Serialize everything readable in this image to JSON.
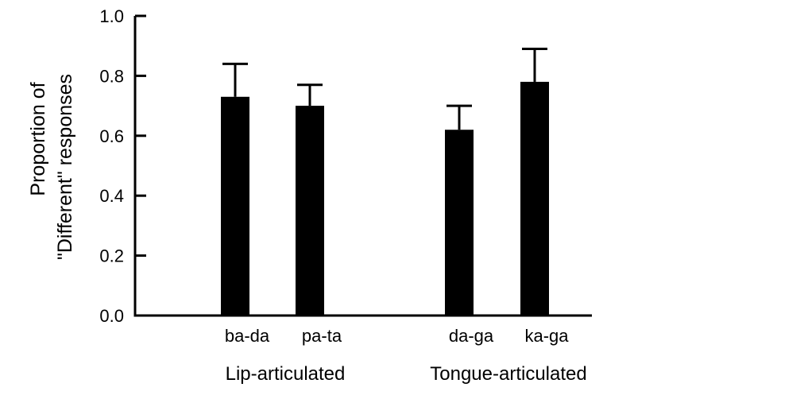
{
  "chart_data": {
    "type": "bar",
    "title": "",
    "ylabel_lines": [
      "Proportion of",
      "\"Different\" responses"
    ],
    "xlabel": "",
    "ylim": [
      0,
      1.0
    ],
    "yticks": [
      "0.0",
      "0.2",
      "0.4",
      "0.6",
      "0.8",
      "1.0"
    ],
    "grid": false,
    "categories": [
      "ba-da",
      "pa-ta",
      "da-ga",
      "ka-ga"
    ],
    "values": [
      0.73,
      0.7,
      0.62,
      0.78
    ],
    "errors": [
      0.11,
      0.07,
      0.08,
      0.11
    ],
    "groups": [
      {
        "label": "Lip-articulated",
        "members": [
          "ba-da",
          "pa-ta"
        ]
      },
      {
        "label": "Tongue-articulated",
        "members": [
          "da-ga",
          "ka-ga"
        ]
      }
    ],
    "bar_color": "#000000"
  }
}
